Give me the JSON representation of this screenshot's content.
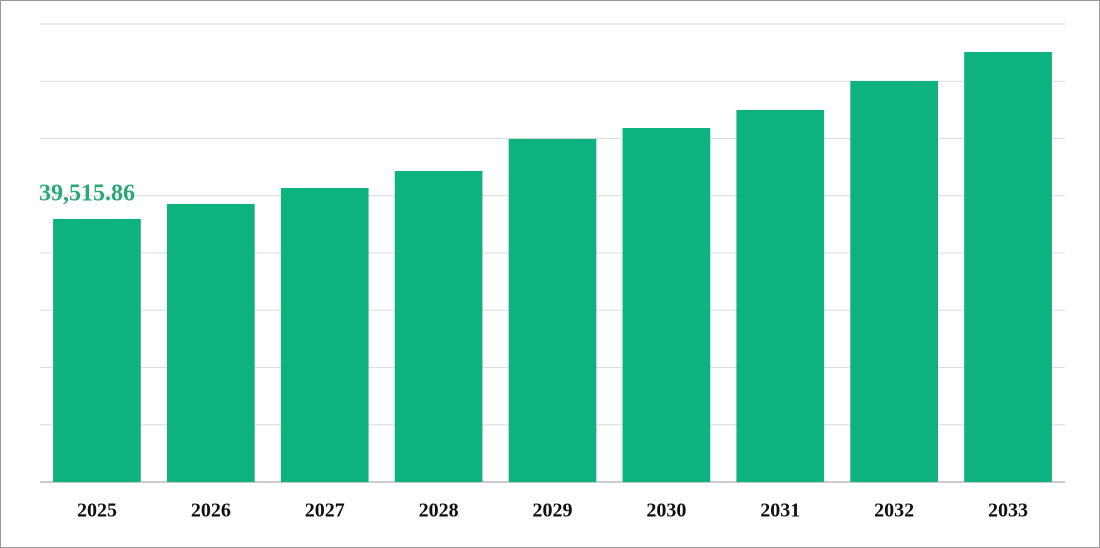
{
  "chart_data": {
    "type": "bar",
    "categories": [
      "2025",
      "2026",
      "2027",
      "2028",
      "2029",
      "2030",
      "2031",
      "2032",
      "2033"
    ],
    "values": [
      39515.86,
      41770,
      44170,
      46720,
      51530,
      53180,
      55890,
      60240,
      64600
    ],
    "value_labels": [
      "39,515.86",
      null,
      null,
      null,
      null,
      null,
      null,
      null,
      null
    ],
    "color": "#0db27f",
    "ylim": [
      0,
      68800
    ],
    "grid": true
  }
}
